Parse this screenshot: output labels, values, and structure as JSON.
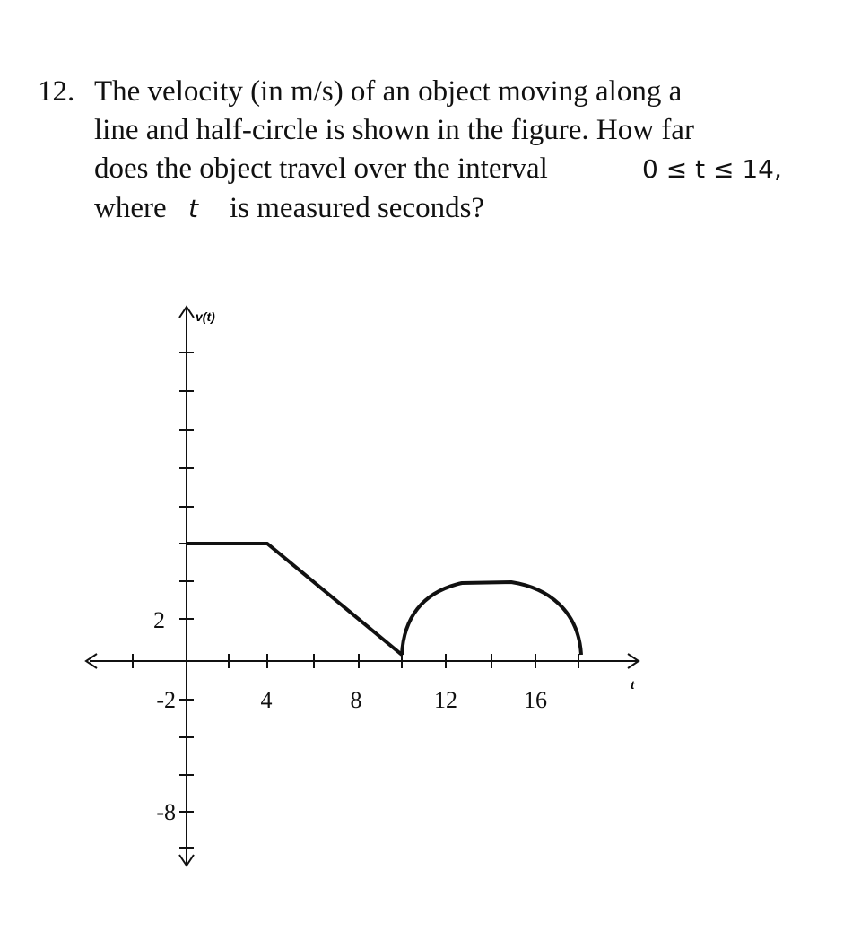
{
  "question": {
    "number": "12.",
    "line1": "The velocity (in m/s) of an object moving along a",
    "line2": "line and half-circle is shown in the figure. How far",
    "line3_text": "does the object travel over the interval",
    "line3_math": "0 ≤ t ≤ 14,",
    "line4_pre": "where",
    "line4_math": "t",
    "line4_post": "is measured seconds?"
  },
  "figure": {
    "y_axis_label": "v(t)",
    "x_axis_label": "t",
    "y_tick_labels": [
      "2",
      "-2",
      "-8"
    ],
    "x_tick_labels": [
      "4",
      "8",
      "12",
      "16"
    ]
  }
}
